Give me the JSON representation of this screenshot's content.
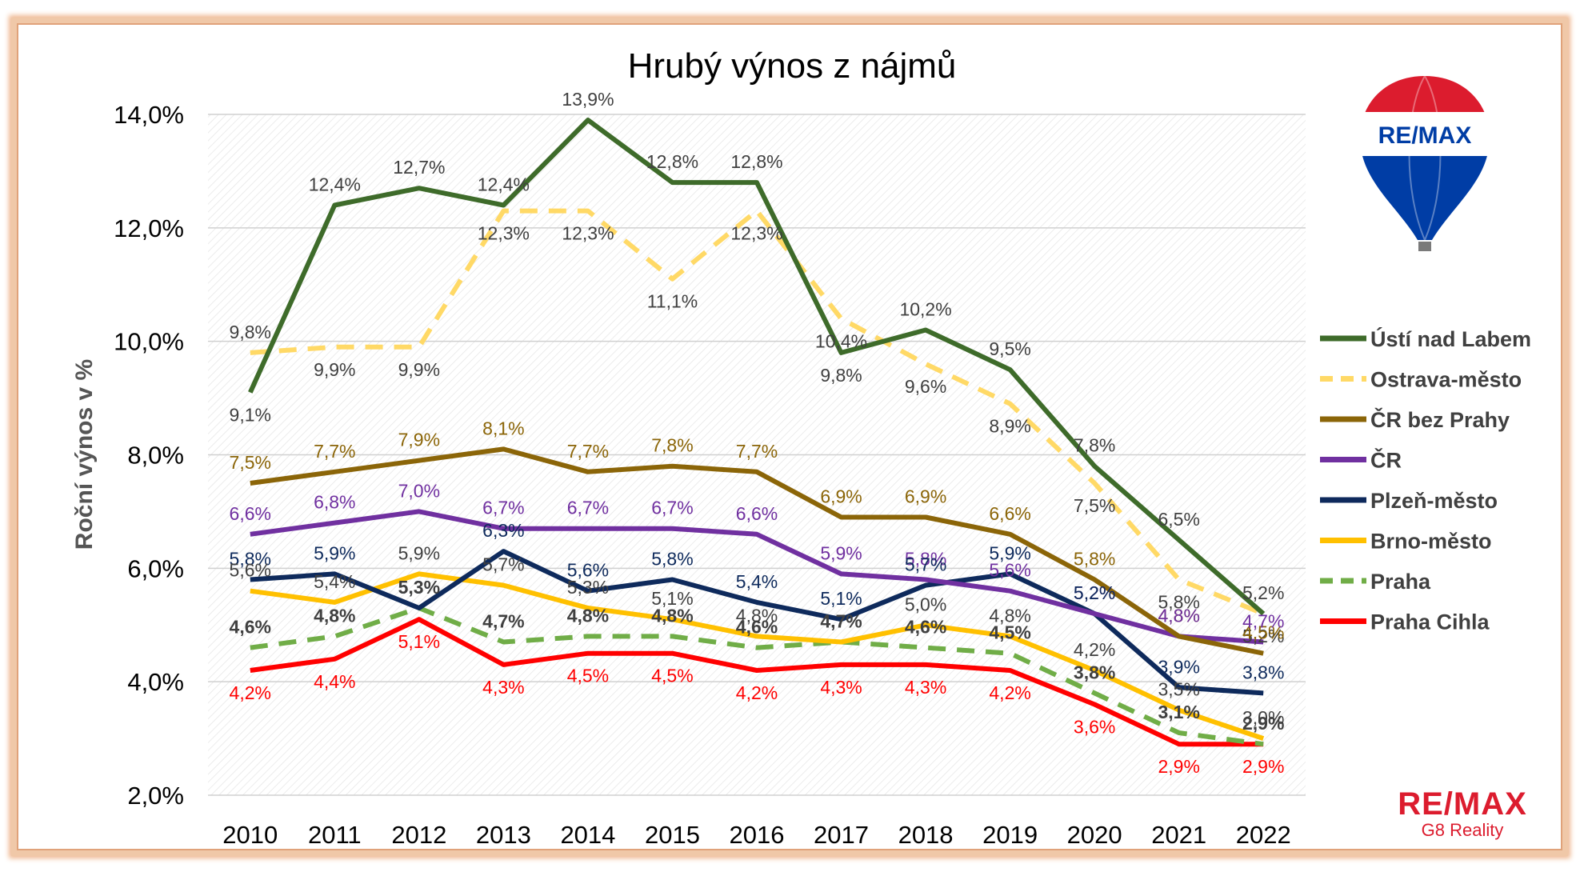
{
  "chart_data": {
    "type": "line",
    "title": "Hrubý výnos z nájmů",
    "ylabel": "Roční výnos v %",
    "xlabel": "",
    "x": [
      "2010",
      "2011",
      "2012",
      "2013",
      "2014",
      "2015",
      "2016",
      "2017",
      "2018",
      "2019",
      "2020",
      "2021",
      "2022"
    ],
    "ylim": [
      2,
      14
    ],
    "yticks": [
      "2,0%",
      "4,0%",
      "6,0%",
      "8,0%",
      "10,0%",
      "12,0%",
      "14,0%"
    ],
    "grid": true,
    "legend_position": "right",
    "series": [
      {
        "name": "Ústí nad Labem",
        "color": "#3e6b2a",
        "dash": "solid",
        "values": [
          9.1,
          12.4,
          12.7,
          12.4,
          13.9,
          12.8,
          12.8,
          9.8,
          10.2,
          9.5,
          7.8,
          6.5,
          5.2
        ],
        "labels": [
          "9,1%",
          "12,4%",
          "12,7%",
          "12,4%",
          "13,9%",
          "12,8%",
          "12,8%",
          "9,8%",
          "10,2%",
          "9,5%",
          "7,8%",
          "6,5%",
          "5,2%"
        ]
      },
      {
        "name": "Ostrava-město",
        "color": "#ffd966",
        "dash": "dash",
        "values": [
          9.8,
          9.9,
          9.9,
          12.3,
          12.3,
          11.1,
          12.3,
          10.4,
          9.6,
          8.9,
          7.5,
          5.8,
          5.2
        ],
        "labels": [
          "9,8%",
          "9,9%",
          "9,9%",
          "12,3%",
          "12,3%",
          "11,1%",
          "12,3%",
          "10,4%",
          "9,6%",
          "8,9%",
          "7,5%",
          "5,8%",
          "5,2%"
        ]
      },
      {
        "name": "ČR bez Prahy",
        "color": "#8b6508",
        "dash": "solid",
        "values": [
          7.5,
          7.7,
          7.9,
          8.1,
          7.7,
          7.8,
          7.7,
          6.9,
          6.9,
          6.6,
          5.8,
          4.8,
          4.5
        ],
        "labels": [
          "7,5%",
          "7,7%",
          "7,9%",
          "8,1%",
          "7,7%",
          "7,8%",
          "7,7%",
          "6,9%",
          "6,9%",
          "6,6%",
          "5,8%",
          "4,8%",
          "4,5%"
        ]
      },
      {
        "name": "ČR",
        "color": "#7030a0",
        "dash": "solid",
        "values": [
          6.6,
          6.8,
          7.0,
          6.7,
          6.7,
          6.7,
          6.6,
          5.9,
          5.8,
          5.6,
          5.2,
          4.8,
          4.7
        ],
        "labels": [
          "6,6%",
          "6,8%",
          "7,0%",
          "6,7%",
          "6,7%",
          "6,7%",
          "6,6%",
          "5,9%",
          "5,8%",
          "5,6%",
          "5,2%",
          "4,8%",
          "4,7%"
        ]
      },
      {
        "name": "Plzeň-město",
        "color": "#0e2a5c",
        "dash": "solid",
        "values": [
          5.8,
          5.9,
          5.3,
          6.3,
          5.6,
          5.8,
          5.4,
          5.1,
          5.7,
          5.9,
          5.2,
          3.9,
          3.8
        ],
        "labels": [
          "5,8%",
          "5,9%",
          "5,3%",
          "6,3%",
          "5,6%",
          "5,8%",
          "5,4%",
          "5,1%",
          "5,7%",
          "5,9%",
          "5,2%",
          "3,9%",
          "3,8%"
        ]
      },
      {
        "name": "Brno-město",
        "color": "#ffc000",
        "dash": "solid",
        "values": [
          5.6,
          5.4,
          5.9,
          5.7,
          5.3,
          5.1,
          4.8,
          4.7,
          5.0,
          4.8,
          4.2,
          3.5,
          3.0
        ],
        "labels": [
          "5,6%",
          "5,4%",
          "5,9%",
          "5,7%",
          "5,3%",
          "5,1%",
          "4,8%",
          "4,7%",
          "5,0%",
          "4,8%",
          "4,2%",
          "3,5%",
          "3,0%"
        ]
      },
      {
        "name": "Praha",
        "color": "#70ad47",
        "dash": "dash",
        "values": [
          4.6,
          4.8,
          5.3,
          4.7,
          4.8,
          4.8,
          4.6,
          4.7,
          4.6,
          4.5,
          3.8,
          3.1,
          2.9
        ],
        "labels": [
          "4,6%",
          "4,8%",
          "5,3%",
          "4,7%",
          "4,8%",
          "4,8%",
          "4,6%",
          "4,7%",
          "4,6%",
          "4,5%",
          "3,8%",
          "3,1%",
          "2,9%"
        ]
      },
      {
        "name": "Praha Cihla",
        "color": "#ff0000",
        "dash": "solid",
        "values": [
          4.2,
          4.4,
          5.1,
          4.3,
          4.5,
          4.5,
          4.2,
          4.3,
          4.3,
          4.2,
          3.6,
          2.9,
          2.9
        ],
        "labels": [
          "4,2%",
          "4,4%",
          "5,1%",
          "4,3%",
          "4,5%",
          "4,5%",
          "4,2%",
          "4,3%",
          "4,3%",
          "4,2%",
          "3,6%",
          "2,9%",
          "2,9%"
        ]
      }
    ]
  },
  "logo": {
    "balloon_text": "RE/MAX",
    "brand_name": "RE/MAX",
    "brand_sub": "G8 Reality",
    "red": "#dc1c2e",
    "blue": "#003da5"
  }
}
